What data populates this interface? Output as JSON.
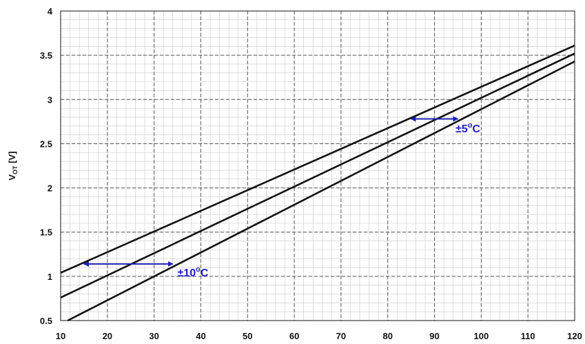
{
  "chart_data": {
    "type": "line",
    "title": "",
    "xlabel": "",
    "ylabel": {
      "main": "V",
      "sub": "OT",
      "unit": " [V]"
    },
    "xlim": [
      10,
      120
    ],
    "ylim": [
      0.5,
      4
    ],
    "x_ticks": [
      10,
      20,
      30,
      40,
      50,
      60,
      70,
      80,
      90,
      100,
      110,
      120
    ],
    "y_ticks": [
      0.5,
      1,
      1.5,
      2,
      2.5,
      3,
      3.5,
      4
    ],
    "y_tick_labels": [
      "0.5",
      "1",
      "1.5",
      "2",
      "2.5",
      "3",
      "3.5",
      "4"
    ],
    "grid": {
      "major": true,
      "minor": true
    },
    "series": [
      {
        "x": [
          10,
          120
        ],
        "y": [
          1.04,
          3.61
        ]
      },
      {
        "x": [
          10,
          120
        ],
        "y": [
          0.76,
          3.52
        ]
      },
      {
        "x": [
          11.5,
          120
        ],
        "y": [
          0.5,
          3.43
        ]
      }
    ],
    "annotations": [
      {
        "x_from": 15,
        "x_to": 34,
        "y": 1.14,
        "label_main": "±10",
        "label_sup": "o",
        "label_tail": "C",
        "label_x": 35,
        "label_y": 1.0
      },
      {
        "x_from": 85,
        "x_to": 95,
        "y": 2.78,
        "label_main": "±5",
        "label_sup": "o",
        "label_tail": "C",
        "label_x": 94.5,
        "label_y": 2.63
      }
    ],
    "colors": {
      "line": "#111111",
      "annotation": "#1f1fb8",
      "grid_major": "#555555",
      "grid_minor": "#c8c8c8"
    }
  }
}
